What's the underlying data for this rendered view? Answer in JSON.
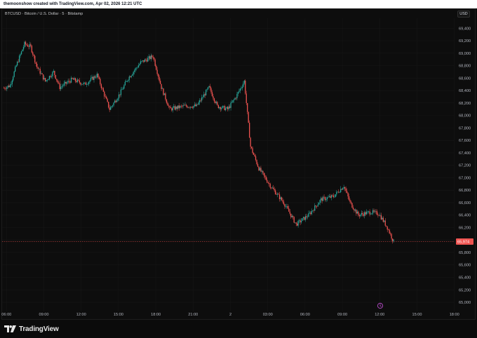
{
  "header": {
    "attribution": "themoonshow created with TradingView.com, Apr 02, 2026 12:21 UTC"
  },
  "symbol_info": "BTCUSD · Bitcoin / U.S. Dollar · 5 · Bitstamp",
  "currency_button": "USD",
  "footer": {
    "brand": "TradingView"
  },
  "colors": {
    "up": "#26a69a",
    "down": "#ef5350",
    "background": "#0d0d0d",
    "grid": "#161616",
    "axis_text": "#b2b5be",
    "last_price_line": "#ef5350",
    "countdown_icon": "#ab47bc"
  },
  "chart_data": {
    "type": "candlestick",
    "title": "BTCUSD · Bitcoin / U.S. Dollar · 5 · Bitstamp",
    "interval": "5",
    "exchange": "Bitstamp",
    "currency": "USD",
    "grid": true,
    "ylim": [
      64900,
      69500
    ],
    "y_ticks": [
      "69,400",
      "69,200",
      "69,000",
      "68,800",
      "68,600",
      "68,400",
      "68,200",
      "68,000",
      "67,800",
      "67,600",
      "67,400",
      "67,200",
      "67,000",
      "66,800",
      "66,600",
      "66,400",
      "66,200",
      "66,000",
      "65,800",
      "65,600",
      "65,400",
      "65,200",
      "65,000"
    ],
    "x_ticks": [
      "06:00",
      "09:00",
      "12:00",
      "15:00",
      "18:00",
      "21:00",
      "2",
      "03:00",
      "06:00",
      "09:00",
      "12:00",
      "15:00",
      "18:00"
    ],
    "last_price": "65,974",
    "price_path": [
      {
        "time": "05:00",
        "price": 68440
      },
      {
        "time": "05:30",
        "price": 68480
      },
      {
        "time": "06:00",
        "price": 68800
      },
      {
        "time": "06:40",
        "price": 69150
      },
      {
        "time": "07:10",
        "price": 69100
      },
      {
        "time": "07:40",
        "price": 68780
      },
      {
        "time": "08:20",
        "price": 68550
      },
      {
        "time": "09:00",
        "price": 68700
      },
      {
        "time": "09:30",
        "price": 68450
      },
      {
        "time": "10:30",
        "price": 68580
      },
      {
        "time": "11:30",
        "price": 68500
      },
      {
        "time": "12:30",
        "price": 68650
      },
      {
        "time": "13:30",
        "price": 68100
      },
      {
        "time": "14:20",
        "price": 68350
      },
      {
        "time": "15:00",
        "price": 68600
      },
      {
        "time": "16:00",
        "price": 68850
      },
      {
        "time": "17:00",
        "price": 68950
      },
      {
        "time": "17:40",
        "price": 68450
      },
      {
        "time": "18:20",
        "price": 68100
      },
      {
        "time": "19:30",
        "price": 68150
      },
      {
        "time": "20:30",
        "price": 68150
      },
      {
        "time": "21:30",
        "price": 68450
      },
      {
        "time": "22:10",
        "price": 68150
      },
      {
        "time": "23:00",
        "price": 68100
      },
      {
        "time": "23:40",
        "price": 68300
      },
      {
        "time": "00:20",
        "price": 68550
      },
      {
        "time": "00:50",
        "price": 67500
      },
      {
        "time": "01:30",
        "price": 67150
      },
      {
        "time": "02:30",
        "price": 66850
      },
      {
        "time": "03:30",
        "price": 66600
      },
      {
        "time": "04:30",
        "price": 66250
      },
      {
        "time": "05:30",
        "price": 66400
      },
      {
        "time": "06:30",
        "price": 66650
      },
      {
        "time": "07:30",
        "price": 66700
      },
      {
        "time": "08:20",
        "price": 66870
      },
      {
        "time": "08:50",
        "price": 66600
      },
      {
        "time": "09:30",
        "price": 66400
      },
      {
        "time": "10:30",
        "price": 66450
      },
      {
        "time": "11:10",
        "price": 66420
      },
      {
        "time": "11:50",
        "price": 66200
      },
      {
        "time": "12:20",
        "price": 65974
      }
    ]
  }
}
